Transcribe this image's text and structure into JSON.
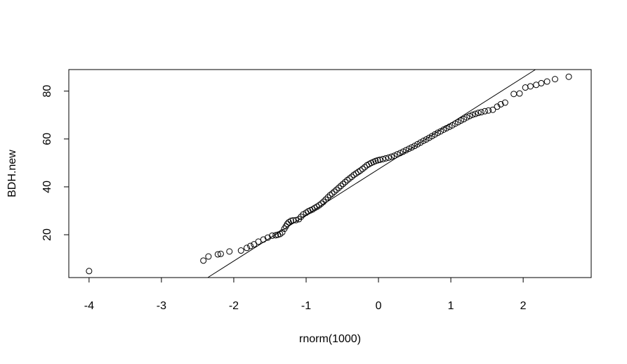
{
  "chart_data": {
    "type": "scatter",
    "title": "",
    "xlabel": "rnorm(1000)",
    "ylabel": "BDH.new",
    "xlim": [
      -4.28,
      2.94
    ],
    "ylim": [
      2.1,
      89
    ],
    "x_ticks": [
      -4,
      -3,
      -2,
      -1,
      0,
      1,
      2
    ],
    "y_ticks": [
      20,
      40,
      60,
      80
    ],
    "grid": false,
    "legend": "none",
    "reference_line": {
      "x1": -2.36,
      "y1": 2.1,
      "x2": 2.17,
      "y2": 89
    },
    "points": {
      "x": [
        -4.0,
        -2.42,
        -2.35,
        -2.22,
        -2.18,
        -2.06,
        -1.9,
        -1.82,
        -1.77,
        -1.72,
        -1.66,
        -1.59,
        -1.53,
        -1.47,
        -1.42,
        -1.39,
        -1.36,
        -1.33,
        -1.3,
        -1.28,
        -1.26,
        -1.24,
        -1.21,
        -1.18,
        -1.14,
        -1.1,
        -1.07,
        -1.04,
        -1.0,
        -0.97,
        -0.94,
        -0.91,
        -0.88,
        -0.85,
        -0.82,
        -0.79,
        -0.76,
        -0.73,
        -0.7,
        -0.67,
        -0.64,
        -0.61,
        -0.58,
        -0.55,
        -0.52,
        -0.49,
        -0.46,
        -0.43,
        -0.4,
        -0.37,
        -0.34,
        -0.31,
        -0.28,
        -0.25,
        -0.22,
        -0.19,
        -0.16,
        -0.13,
        -0.1,
        -0.07,
        -0.04,
        -0.01,
        0.02,
        0.06,
        0.1,
        0.14,
        0.18,
        0.22,
        0.26,
        0.3,
        0.34,
        0.38,
        0.42,
        0.46,
        0.5,
        0.54,
        0.58,
        0.62,
        0.66,
        0.7,
        0.74,
        0.78,
        0.82,
        0.86,
        0.9,
        0.94,
        0.98,
        1.02,
        1.06,
        1.1,
        1.14,
        1.18,
        1.22,
        1.26,
        1.3,
        1.34,
        1.38,
        1.42,
        1.47,
        1.52,
        1.58,
        1.64,
        1.69,
        1.75,
        1.87,
        1.95,
        2.03,
        2.1,
        2.18,
        2.25,
        2.33,
        2.44,
        2.63
      ],
      "y": [
        4.8,
        9.2,
        10.9,
        11.8,
        12.0,
        13.0,
        13.4,
        14.5,
        15.3,
        16.0,
        17.1,
        18.0,
        18.8,
        19.6,
        19.8,
        20.0,
        20.3,
        21.0,
        22.5,
        23.5,
        24.5,
        25.2,
        25.8,
        26.0,
        26.1,
        26.5,
        27.5,
        28.5,
        29.2,
        29.8,
        30.2,
        30.6,
        31.2,
        31.7,
        32.3,
        33.0,
        33.8,
        34.7,
        35.6,
        36.5,
        37.2,
        38.0,
        38.8,
        39.6,
        40.4,
        41.2,
        42.0,
        42.8,
        43.5,
        44.2,
        45.0,
        45.6,
        46.2,
        46.8,
        47.5,
        48.2,
        49.0,
        49.5,
        50.0,
        50.4,
        50.8,
        51.1,
        51.3,
        51.6,
        51.9,
        52.2,
        52.6,
        53.0,
        53.6,
        54.1,
        54.7,
        55.3,
        55.9,
        56.5,
        57.1,
        57.8,
        58.5,
        59.2,
        59.8,
        60.5,
        61.2,
        61.9,
        62.6,
        63.2,
        63.9,
        64.5,
        65.1,
        65.7,
        66.4,
        67.0,
        67.7,
        68.3,
        69.0,
        69.6,
        70.1,
        70.5,
        70.9,
        71.2,
        71.6,
        71.9,
        72.2,
        73.5,
        74.5,
        75.2,
        78.8,
        79.0,
        81.5,
        82.0,
        82.6,
        83.3,
        84.0,
        85.0,
        86.0
      ]
    }
  }
}
